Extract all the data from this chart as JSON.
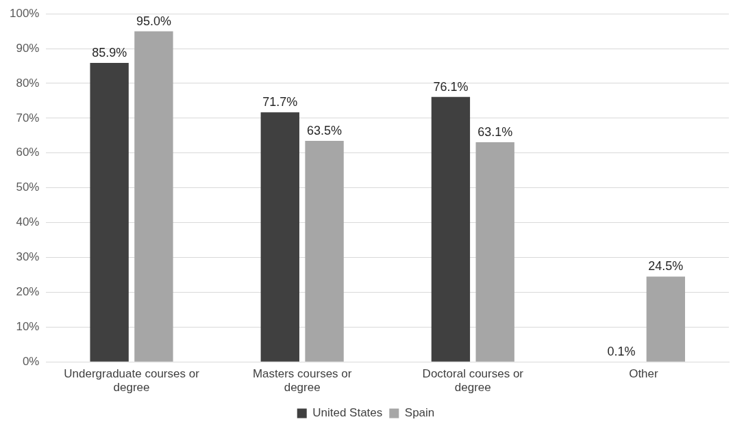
{
  "chart_data": {
    "type": "bar",
    "categories": [
      "Undergraduate courses or degree",
      "Masters courses or degree",
      "Doctoral courses or degree",
      "Other"
    ],
    "series": [
      {
        "name": "United States",
        "color": "#404040",
        "values": [
          85.9,
          71.7,
          76.1,
          0.1
        ],
        "value_labels": [
          "85.9%",
          "71.7%",
          "76.1%",
          "0.1%"
        ]
      },
      {
        "name": "Spain",
        "color": "#a6a6a6",
        "values": [
          95.0,
          63.5,
          63.1,
          24.5
        ],
        "value_labels": [
          "95.0%",
          "63.5%",
          "63.1%",
          "24.5%"
        ]
      }
    ],
    "ylim": [
      0,
      100
    ],
    "yticks": [
      {
        "value": 0,
        "label": "0%"
      },
      {
        "value": 10,
        "label": "10%"
      },
      {
        "value": 20,
        "label": "20%"
      },
      {
        "value": 30,
        "label": "30%"
      },
      {
        "value": 40,
        "label": "40%"
      },
      {
        "value": 50,
        "label": "50%"
      },
      {
        "value": 60,
        "label": "60%"
      },
      {
        "value": 70,
        "label": "70%"
      },
      {
        "value": 80,
        "label": "80%"
      },
      {
        "value": 90,
        "label": "90%"
      },
      {
        "value": 100,
        "label": "100%"
      }
    ],
    "grid": "y",
    "legend": "bottom"
  }
}
